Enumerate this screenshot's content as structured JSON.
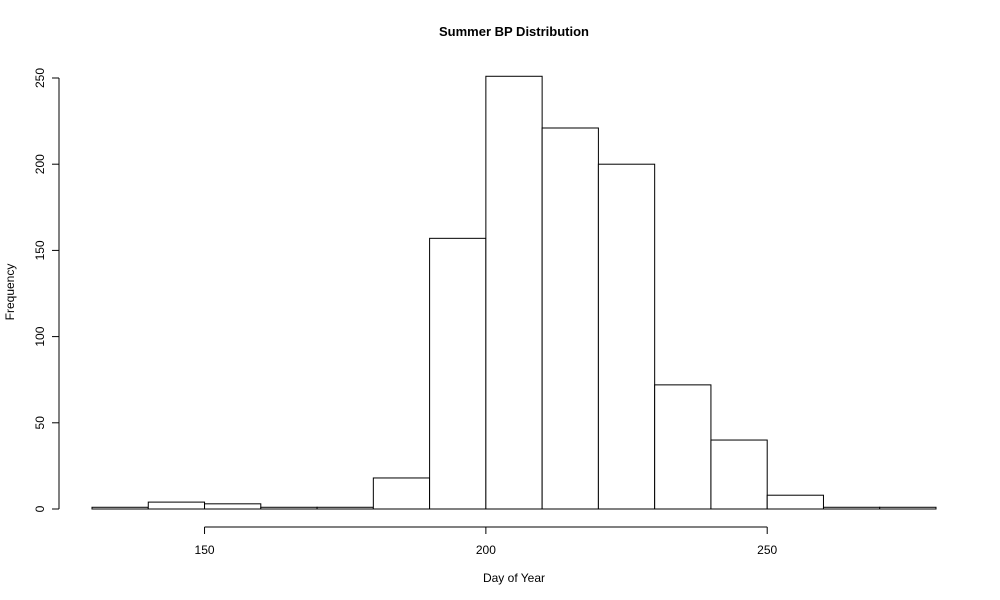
{
  "chart_data": {
    "type": "bar",
    "title": "Summer BP Distribution",
    "xlabel": "Day of Year",
    "ylabel": "Frequency",
    "bin_edges": [
      130,
      140,
      150,
      160,
      170,
      180,
      190,
      200,
      210,
      220,
      230,
      240,
      250,
      260,
      270,
      280
    ],
    "values": [
      1,
      4,
      3,
      1,
      1,
      18,
      157,
      251,
      221,
      200,
      72,
      40,
      8,
      1,
      1
    ],
    "xlim": [
      130,
      280
    ],
    "ylim": [
      0,
      250
    ],
    "x_ticks": [
      150,
      200,
      250
    ],
    "y_ticks": [
      0,
      50,
      100,
      150,
      200,
      250
    ],
    "grid": false,
    "bar_fill": "#ffffff",
    "bar_stroke": "#000000"
  }
}
